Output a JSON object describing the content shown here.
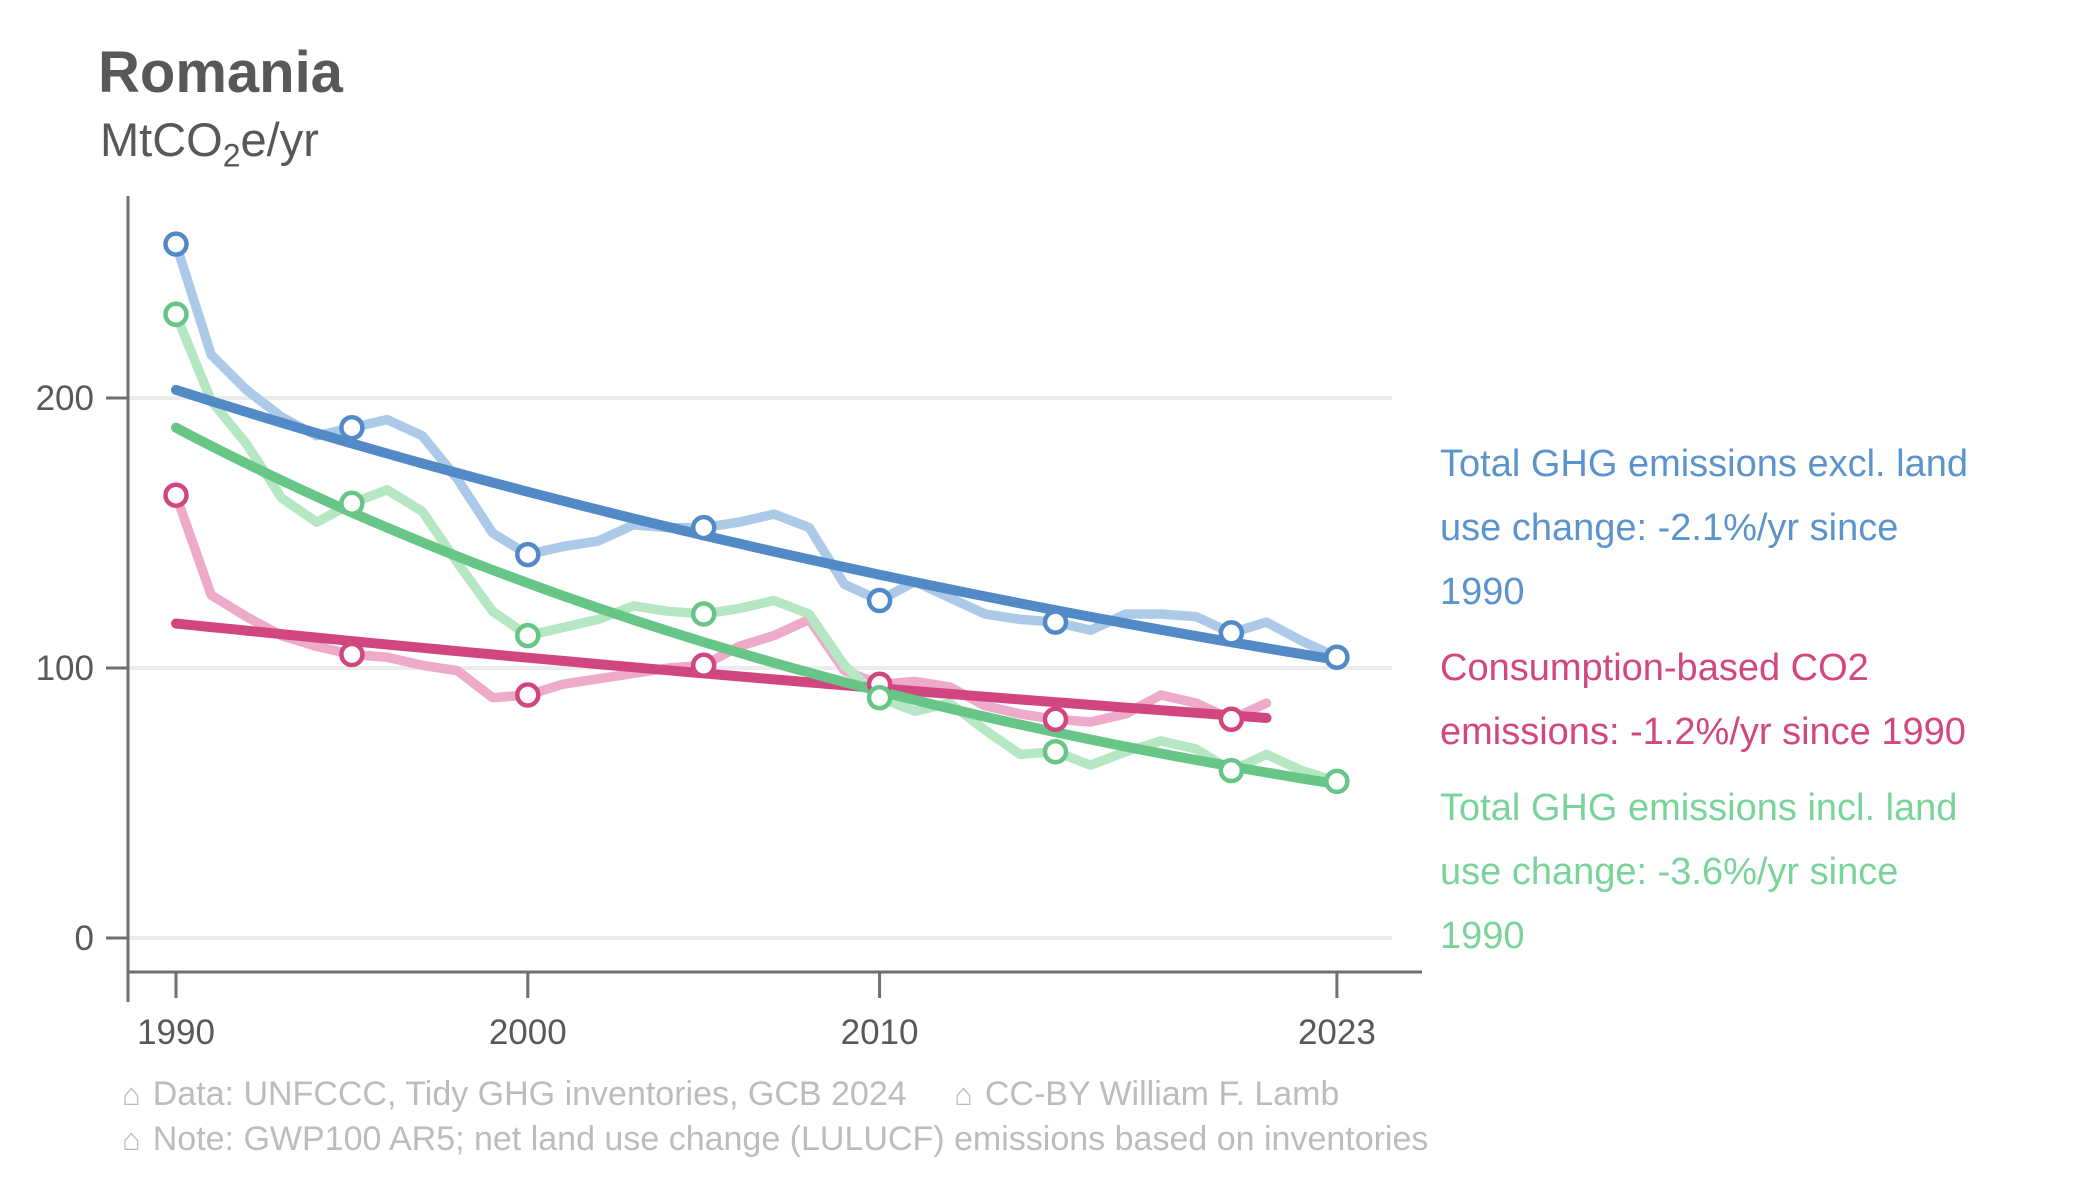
{
  "header": {
    "title": "Romania",
    "unit_pre": "MtCO",
    "unit_sub": "2",
    "unit_post": "e/yr"
  },
  "chart_data": {
    "type": "line",
    "title": "Romania",
    "ylabel": "MtCO2e/yr",
    "xlabel": "",
    "ylim": [
      0,
      275
    ],
    "xlim": [
      1988.6,
      2025.4
    ],
    "grid": "horizontal",
    "y_ticks": [
      0,
      100,
      200
    ],
    "x_ticks": [
      1990,
      2000,
      2010,
      2023
    ],
    "legend_position": "right",
    "style": {
      "grid_color": "#ececec",
      "axis_color": "#6f6f6f",
      "tick_label_color": "#595959"
    },
    "series": [
      {
        "id": "ghg-excl-luc",
        "name": "Total GHG emissions excl. land use change",
        "color": "#5289c7",
        "pale_color": "#accae8",
        "years": [
          1990,
          1991,
          1992,
          1993,
          1994,
          1995,
          1996,
          1997,
          1998,
          1999,
          2000,
          2001,
          2002,
          2003,
          2004,
          2005,
          2006,
          2007,
          2008,
          2009,
          2010,
          2011,
          2012,
          2013,
          2014,
          2015,
          2016,
          2017,
          2018,
          2019,
          2020,
          2021,
          2022,
          2023
        ],
        "values": [
          257,
          216,
          203,
          193,
          186,
          189,
          192,
          186,
          170,
          150,
          142,
          145,
          147,
          153,
          152,
          152,
          154,
          157,
          152,
          131,
          125,
          132,
          126,
          120,
          118,
          117,
          114,
          120,
          120,
          119,
          113,
          117,
          110,
          104
        ],
        "marker_years": [
          1990,
          1995,
          2000,
          2005,
          2010,
          2015,
          2020,
          2023
        ],
        "trend": {
          "start_year": 1990,
          "end_year": 2023,
          "start_value": 203,
          "end_value": 103,
          "rate_label": "-2.1%/yr"
        }
      },
      {
        "id": "consumption-co2",
        "name": "Consumption-based CO2 emissions",
        "color": "#d14680",
        "pale_color": "#edabc9",
        "years": [
          1990,
          1991,
          1992,
          1993,
          1994,
          1995,
          1996,
          1997,
          1998,
          1999,
          2000,
          2001,
          2002,
          2003,
          2004,
          2005,
          2006,
          2007,
          2008,
          2009,
          2010,
          2011,
          2012,
          2013,
          2014,
          2015,
          2016,
          2017,
          2018,
          2019,
          2020,
          2021
        ],
        "values": [
          164,
          127,
          119,
          112,
          108,
          105,
          104,
          101,
          99,
          89,
          90,
          94,
          96,
          98,
          100,
          101,
          108,
          112,
          118,
          99,
          94,
          95,
          93,
          86,
          83,
          81,
          80,
          83,
          90,
          87,
          81,
          87
        ],
        "marker_years": [
          1990,
          1995,
          2000,
          2005,
          2010,
          2015,
          2020
        ],
        "trend": {
          "start_year": 1990,
          "end_year": 2021,
          "start_value": 116.5,
          "end_value": 81.5,
          "rate_label": "-1.2%/yr"
        }
      },
      {
        "id": "ghg-incl-luc",
        "name": "Total GHG emissions incl. land use change",
        "color": "#67c687",
        "pale_color": "#b6e7c4",
        "years": [
          1990,
          1991,
          1992,
          1993,
          1994,
          1995,
          1996,
          1997,
          1998,
          1999,
          2000,
          2001,
          2002,
          2003,
          2004,
          2005,
          2006,
          2007,
          2008,
          2009,
          2010,
          2011,
          2012,
          2013,
          2014,
          2015,
          2016,
          2017,
          2018,
          2019,
          2020,
          2021,
          2022,
          2023
        ],
        "values": [
          231,
          199,
          183,
          163,
          154,
          161,
          166,
          158,
          139,
          121,
          112,
          115,
          118,
          123,
          121,
          120,
          122,
          125,
          120,
          101,
          89,
          84,
          87,
          77,
          68,
          69,
          64,
          69,
          73,
          70,
          62,
          68,
          62,
          58
        ],
        "marker_years": [
          1990,
          1995,
          2000,
          2005,
          2010,
          2015,
          2020,
          2023
        ],
        "trend": {
          "start_year": 1990,
          "end_year": 2023,
          "start_value": 189,
          "end_value": 57,
          "rate_label": "-3.6%/yr"
        }
      }
    ]
  },
  "legend": {
    "items": [
      {
        "text": "Total GHG emissions excl. land use change: -2.1%/yr since 1990",
        "lines": [
          "Total GHG emissions excl. land",
          "use change: -2.1%/yr since",
          "1990"
        ],
        "color": "#5b94cd"
      },
      {
        "text": "Consumption-based CO2 emissions: -1.2%/yr since 1990",
        "lines": [
          "Consumption-based CO2",
          "emissions: -1.2%/yr since 1990"
        ],
        "color": "#d2477f"
      },
      {
        "text": "Total GHG emissions incl. land use change: -3.6%/yr since 1990",
        "lines": [
          "Total GHG emissions incl. land",
          "use change: -3.6%/yr since",
          "1990"
        ],
        "color": "#79d49a"
      }
    ]
  },
  "footer": {
    "icon_glyph": "⌂",
    "color": "#bcbcbc",
    "lines": [
      {
        "segments": [
          {
            "text": "Data: UNFCCC, Tidy GHG inventories, GCB 2024"
          },
          {
            "text": "CC-BY William F. Lamb"
          }
        ]
      },
      {
        "segments": [
          {
            "text": "Note: GWP100 AR5; net land use change (LULUCF) emissions based on inventories"
          }
        ]
      }
    ]
  }
}
